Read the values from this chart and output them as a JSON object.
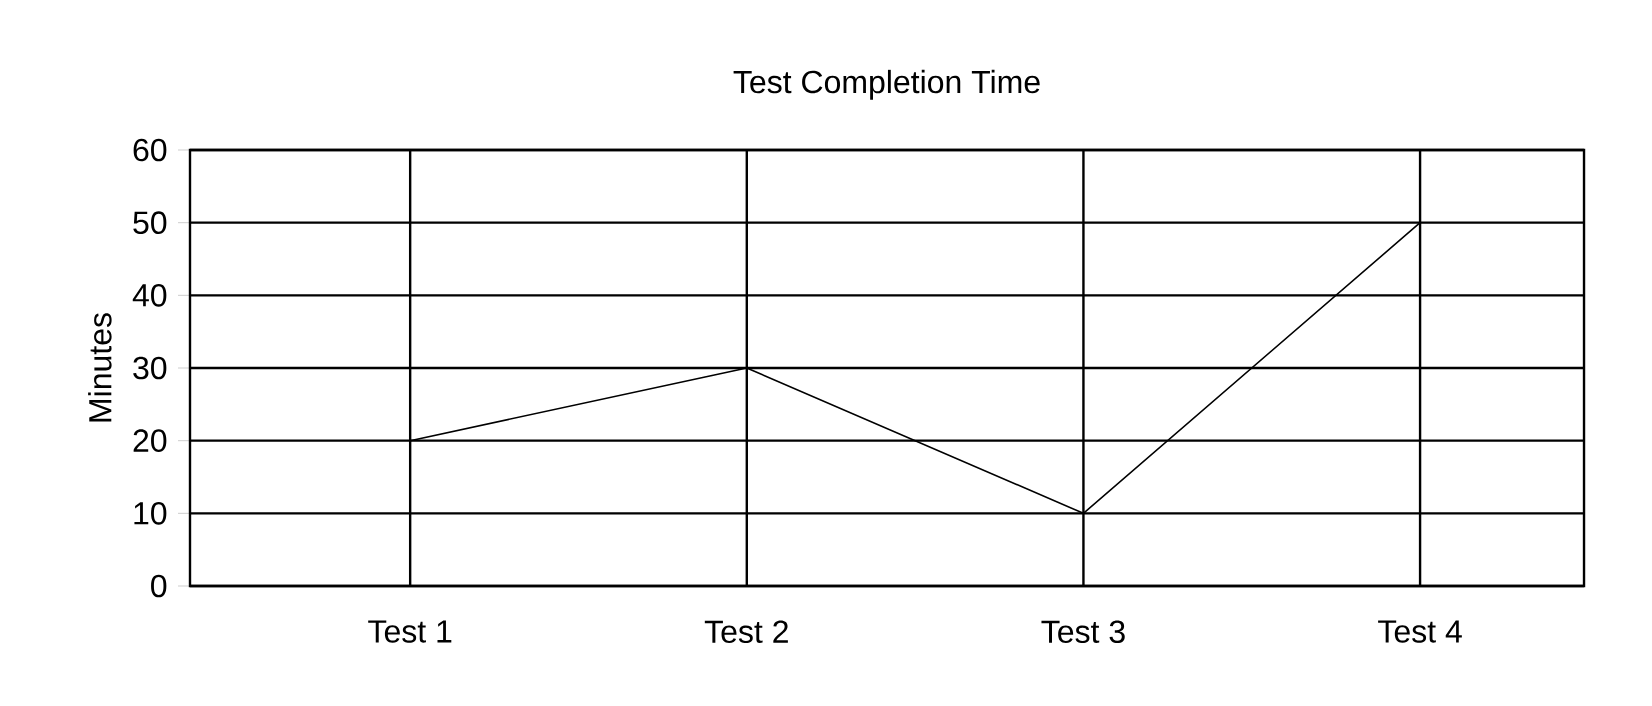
{
  "chart_data": {
    "type": "line",
    "title": "Test Completion Time",
    "ylabel": "Minutes",
    "categories": [
      "Test 1",
      "Test 2",
      "Test 3",
      "Test 4"
    ],
    "values": [
      20,
      30,
      10,
      50
    ],
    "color": "#000000",
    "ylim": [
      0,
      60
    ],
    "yticks": [
      0,
      10,
      20,
      30,
      40,
      50,
      60
    ],
    "grid": true
  }
}
